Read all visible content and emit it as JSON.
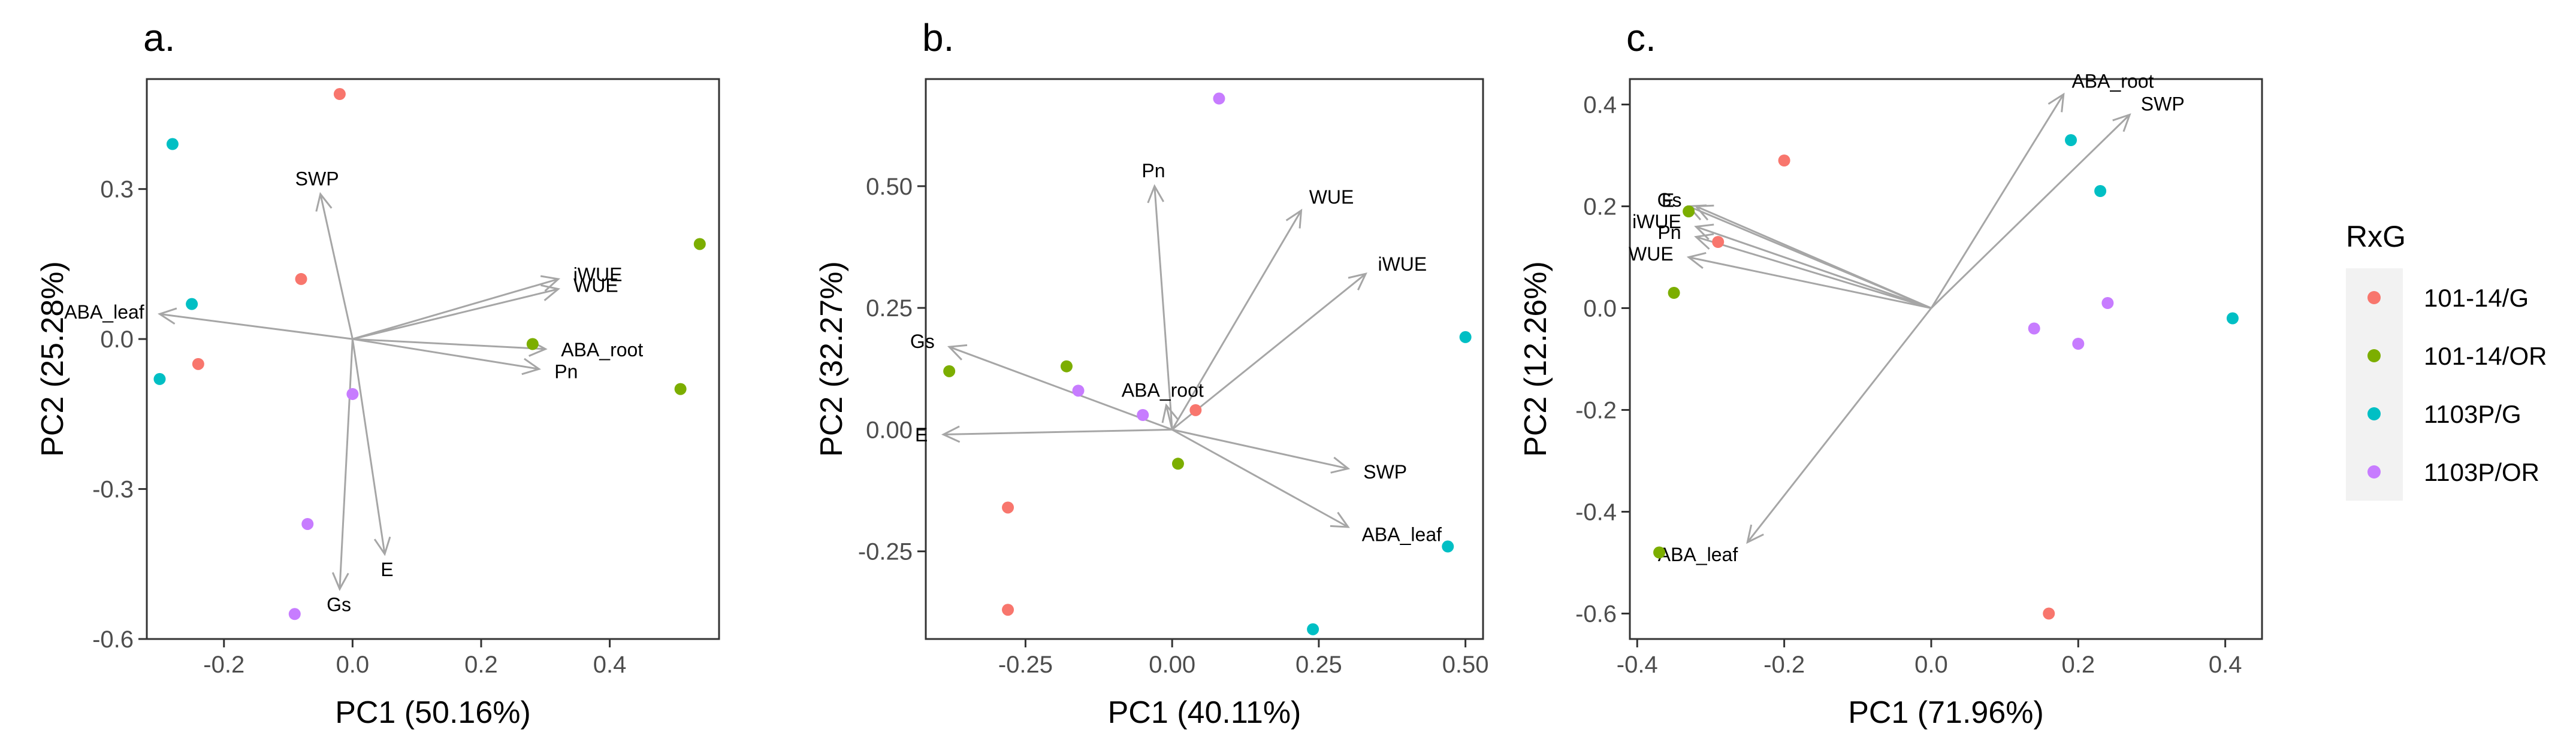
{
  "legend": {
    "title": "RxG",
    "groups": [
      {
        "name": "101-14/G",
        "color": "#F8766D"
      },
      {
        "name": "101-14/OR",
        "color": "#7CAE00"
      },
      {
        "name": "1103P/G",
        "color": "#00BFC4"
      },
      {
        "name": "1103P/OR",
        "color": "#C77CFF"
      }
    ]
  },
  "chart_data": [
    {
      "type": "scatter",
      "panel_label": "a.",
      "xlabel": "PC1 (50.16%)",
      "ylabel": "PC2 (25.28%)",
      "xlim": [
        -0.32,
        0.57
      ],
      "ylim": [
        -0.6,
        0.52
      ],
      "xticks": [
        -0.2,
        0.0,
        0.2,
        0.4
      ],
      "xtick_labels": [
        "-0.2",
        "0.0",
        "0.2",
        "0.4"
      ],
      "yticks": [
        -0.6,
        -0.3,
        0.0,
        0.3
      ],
      "ytick_labels": [
        "-0.6",
        "-0.3",
        "0.0",
        "0.3"
      ],
      "grid": false,
      "series": [
        {
          "name": "101-14/G",
          "points": [
            [
              -0.02,
              0.49
            ],
            [
              -0.08,
              0.12
            ],
            [
              -0.24,
              -0.05
            ]
          ]
        },
        {
          "name": "101-14/OR",
          "points": [
            [
              0.54,
              0.19
            ],
            [
              0.28,
              -0.01
            ],
            [
              0.51,
              -0.1
            ]
          ]
        },
        {
          "name": "1103P/G",
          "points": [
            [
              -0.28,
              0.39
            ],
            [
              -0.25,
              0.07
            ],
            [
              -0.3,
              -0.08
            ]
          ]
        },
        {
          "name": "1103P/OR",
          "points": [
            [
              0.0,
              -0.11
            ],
            [
              -0.07,
              -0.37
            ],
            [
              -0.09,
              -0.55
            ]
          ]
        }
      ],
      "loadings": [
        {
          "label": "SWP",
          "x": -0.05,
          "y": 0.29
        },
        {
          "label": "WUE",
          "x": 0.32,
          "y": 0.1
        },
        {
          "label": "iWUE",
          "x": 0.32,
          "y": 0.12
        },
        {
          "label": "ABA_leaf",
          "x": -0.3,
          "y": 0.05
        },
        {
          "label": "ABA_root",
          "x": 0.3,
          "y": -0.02
        },
        {
          "label": "Pn",
          "x": 0.29,
          "y": -0.06
        },
        {
          "label": "Gs",
          "x": -0.02,
          "y": -0.5
        },
        {
          "label": "E",
          "x": 0.05,
          "y": -0.43
        }
      ]
    },
    {
      "type": "scatter",
      "panel_label": "b.",
      "xlabel": "PC1 (40.11%)",
      "ylabel": "PC2 (32.27%)",
      "xlim": [
        -0.42,
        0.53
      ],
      "ylim": [
        -0.43,
        0.72
      ],
      "xticks": [
        -0.25,
        0.0,
        0.25,
        0.5
      ],
      "xtick_labels": [
        "-0.25",
        "0.00",
        "0.25",
        "0.50"
      ],
      "yticks": [
        -0.25,
        0.0,
        0.25,
        0.5
      ],
      "ytick_labels": [
        "-0.25",
        "0.00",
        "0.25",
        "0.50"
      ],
      "grid": false,
      "series": [
        {
          "name": "101-14/G",
          "points": [
            [
              0.04,
              0.04
            ],
            [
              -0.28,
              -0.16
            ],
            [
              -0.28,
              -0.37
            ]
          ]
        },
        {
          "name": "101-14/OR",
          "points": [
            [
              -0.38,
              0.12
            ],
            [
              -0.18,
              0.13
            ],
            [
              0.01,
              -0.07
            ]
          ]
        },
        {
          "name": "1103P/G",
          "points": [
            [
              0.5,
              0.19
            ],
            [
              0.47,
              -0.24
            ],
            [
              0.24,
              -0.41
            ]
          ]
        },
        {
          "name": "1103P/OR",
          "points": [
            [
              0.08,
              0.68
            ],
            [
              -0.16,
              0.08
            ],
            [
              -0.05,
              0.03
            ]
          ]
        }
      ],
      "loadings": [
        {
          "label": "WUE",
          "x": 0.22,
          "y": 0.45
        },
        {
          "label": "iWUE",
          "x": 0.33,
          "y": 0.32
        },
        {
          "label": "Pn",
          "x": -0.03,
          "y": 0.5
        },
        {
          "label": "Gs",
          "x": -0.38,
          "y": 0.17
        },
        {
          "label": "ABA_root",
          "x": -0.01,
          "y": 0.05
        },
        {
          "label": "E",
          "x": -0.39,
          "y": -0.01
        },
        {
          "label": "SWP",
          "x": 0.3,
          "y": -0.08
        },
        {
          "label": "ABA_leaf",
          "x": 0.3,
          "y": -0.2
        }
      ]
    },
    {
      "type": "scatter",
      "panel_label": "c.",
      "xlabel": "PC1 (71.96%)",
      "ylabel": "PC2 (12.26%)",
      "xlim": [
        -0.41,
        0.45
      ],
      "ylim": [
        -0.65,
        0.45
      ],
      "xticks": [
        -0.4,
        -0.2,
        0.0,
        0.2,
        0.4
      ],
      "xtick_labels": [
        "-0.4",
        "-0.2",
        "0.0",
        "0.2",
        "0.4"
      ],
      "yticks": [
        -0.6,
        -0.4,
        -0.2,
        0.0,
        0.2,
        0.4
      ],
      "ytick_labels": [
        "-0.6",
        "-0.4",
        "-0.2",
        "0.0",
        "0.2",
        "0.4"
      ],
      "grid": false,
      "series": [
        {
          "name": "101-14/G",
          "points": [
            [
              -0.2,
              0.29
            ],
            [
              -0.29,
              0.13
            ],
            [
              0.16,
              -0.6
            ]
          ]
        },
        {
          "name": "101-14/OR",
          "points": [
            [
              -0.33,
              0.19
            ],
            [
              -0.35,
              0.03
            ],
            [
              -0.37,
              -0.48
            ]
          ]
        },
        {
          "name": "1103P/G",
          "points": [
            [
              0.19,
              0.33
            ],
            [
              0.23,
              0.23
            ],
            [
              0.41,
              -0.02
            ]
          ]
        },
        {
          "name": "1103P/OR",
          "points": [
            [
              0.24,
              0.01
            ],
            [
              0.14,
              -0.04
            ],
            [
              0.2,
              -0.07
            ]
          ]
        }
      ],
      "loadings": [
        {
          "label": "ABA_root",
          "x": 0.18,
          "y": 0.42
        },
        {
          "label": "SWP",
          "x": 0.27,
          "y": 0.38
        },
        {
          "label": "Gs",
          "x": -0.32,
          "y": 0.2
        },
        {
          "label": "E",
          "x": -0.33,
          "y": 0.2
        },
        {
          "label": "Pn",
          "x": -0.32,
          "y": 0.14
        },
        {
          "label": "iWUE",
          "x": -0.32,
          "y": 0.16
        },
        {
          "label": "WUE",
          "x": -0.33,
          "y": 0.1
        },
        {
          "label": "ABA_leaf",
          "x": -0.25,
          "y": -0.46
        }
      ]
    }
  ]
}
